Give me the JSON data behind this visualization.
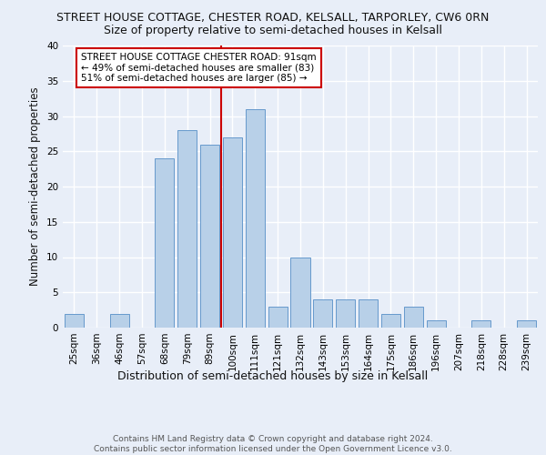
{
  "title_line1": "STREET HOUSE COTTAGE, CHESTER ROAD, KELSALL, TARPORLEY, CW6 0RN",
  "title_line2": "Size of property relative to semi-detached houses in Kelsall",
  "xlabel": "Distribution of semi-detached houses by size in Kelsall",
  "ylabel": "Number of semi-detached properties",
  "footer": "Contains HM Land Registry data © Crown copyright and database right 2024.\nContains public sector information licensed under the Open Government Licence v3.0.",
  "bar_labels": [
    "25sqm",
    "36sqm",
    "46sqm",
    "57sqm",
    "68sqm",
    "79sqm",
    "89sqm",
    "100sqm",
    "111sqm",
    "121sqm",
    "132sqm",
    "143sqm",
    "153sqm",
    "164sqm",
    "175sqm",
    "186sqm",
    "196sqm",
    "207sqm",
    "218sqm",
    "228sqm",
    "239sqm"
  ],
  "bar_values": [
    2,
    0,
    2,
    0,
    24,
    28,
    26,
    27,
    31,
    3,
    10,
    4,
    4,
    4,
    2,
    3,
    1,
    0,
    1,
    0,
    1
  ],
  "bar_color": "#b8d0e8",
  "bar_edge_color": "#6699cc",
  "vline_x_index": 6.5,
  "vline_color": "#cc0000",
  "annotation_text": "STREET HOUSE COTTAGE CHESTER ROAD: 91sqm\n← 49% of semi-detached houses are smaller (83)\n51% of semi-detached houses are larger (85) →",
  "annotation_box_color": "#ffffff",
  "annotation_box_edge": "#cc0000",
  "ylim": [
    0,
    40
  ],
  "yticks": [
    0,
    5,
    10,
    15,
    20,
    25,
    30,
    35,
    40
  ],
  "background_color": "#e8eef8",
  "grid_color": "#ffffff",
  "title1_fontsize": 9,
  "title2_fontsize": 9,
  "xlabel_fontsize": 9,
  "ylabel_fontsize": 8.5,
  "tick_fontsize": 7.5,
  "annotation_fontsize": 7.5,
  "footer_fontsize": 6.5
}
